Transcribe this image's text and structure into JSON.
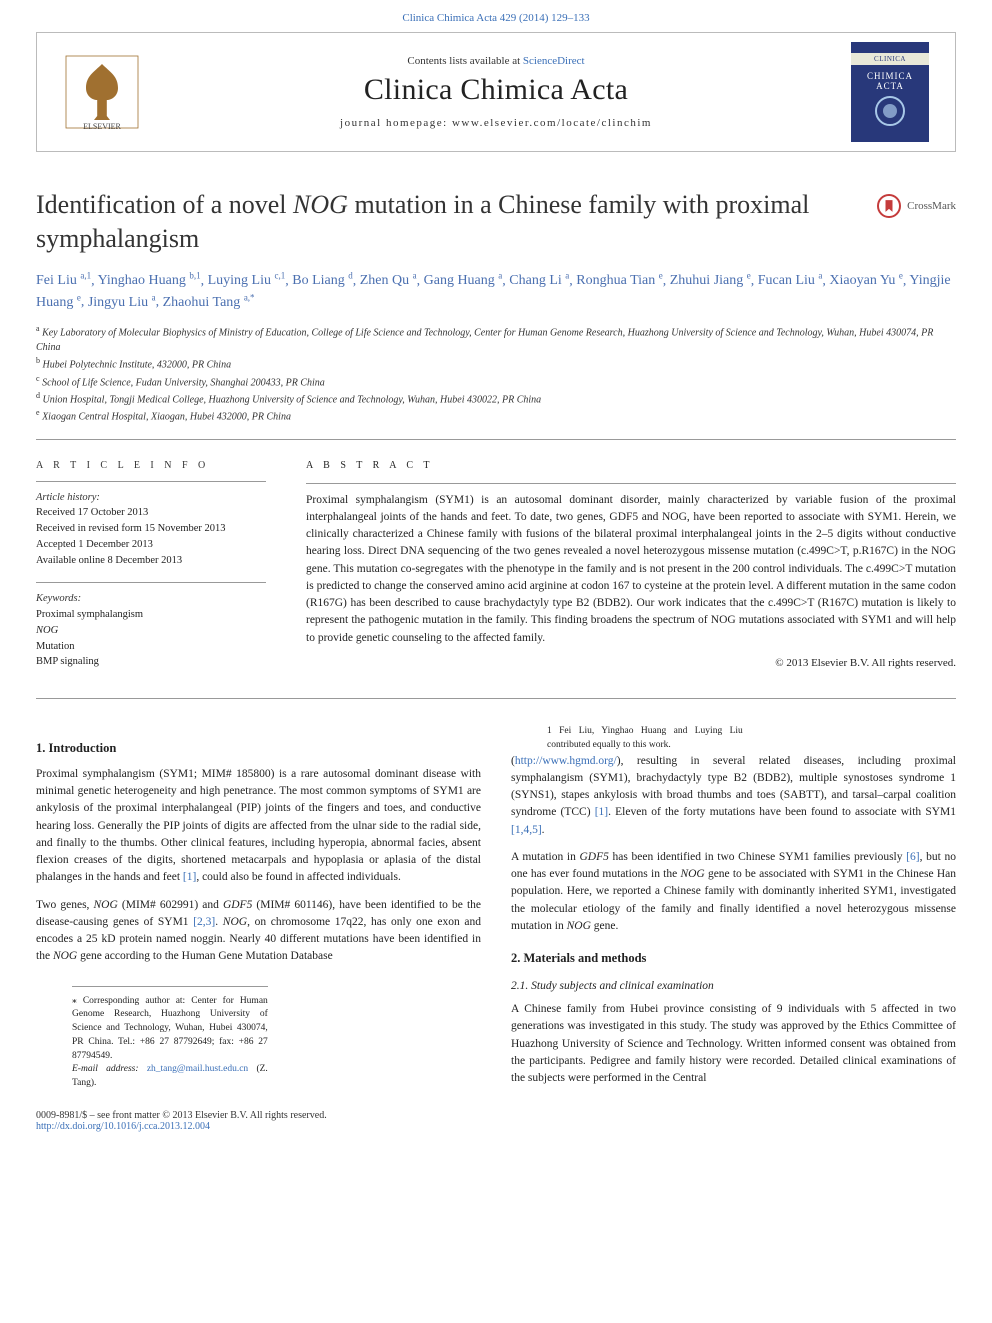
{
  "top_link_text": "Clinica Chimica Acta 429 (2014) 129–133",
  "masthead": {
    "contents_prefix": "Contents lists available at ",
    "contents_link": "ScienceDirect",
    "journal_name": "Clinica Chimica Acta",
    "homepage_label": "journal homepage: www.elsevier.com/locate/clinchim",
    "cover_top": "CLINICA",
    "cover_mid": "CHIMICA",
    "cover_bot": "ACTA"
  },
  "article": {
    "title_prefix": "Identification of a novel ",
    "title_gene": "NOG",
    "title_suffix": " mutation in a Chinese family with proximal symphalangism",
    "crossmark_label": "CrossMark"
  },
  "authors_line": "Fei Liu a,1, Yinghao Huang b,1, Luying Liu c,1, Bo Liang d, Zhen Qu a, Gang Huang a, Chang Li a, Ronghua Tian e, Zhuhui Jiang e, Fucan Liu a, Xiaoyan Yu e, Yingjie Huang e, Jingyu Liu a, Zhaohui Tang a,*",
  "affiliations": [
    {
      "sup": "a",
      "text": "Key Laboratory of Molecular Biophysics of Ministry of Education, College of Life Science and Technology, Center for Human Genome Research, Huazhong University of Science and Technology, Wuhan, Hubei 430074, PR China"
    },
    {
      "sup": "b",
      "text": "Hubei Polytechnic Institute, 432000, PR China"
    },
    {
      "sup": "c",
      "text": "School of Life Science, Fudan University, Shanghai 200433, PR China"
    },
    {
      "sup": "d",
      "text": "Union Hospital, Tongji Medical College, Huazhong University of Science and Technology, Wuhan, Hubei 430022, PR China"
    },
    {
      "sup": "e",
      "text": "Xiaogan Central Hospital, Xiaogan, Hubei 432000, PR China"
    }
  ],
  "info": {
    "heading": "A R T I C L E   I N F O",
    "history_label": "Article history:",
    "history": [
      "Received 17 October 2013",
      "Received in revised form 15 November 2013",
      "Accepted 1 December 2013",
      "Available online 8 December 2013"
    ],
    "keywords_label": "Keywords:",
    "keywords": [
      "Proximal symphalangism",
      "NOG",
      "Mutation",
      "BMP signaling"
    ]
  },
  "abstract": {
    "heading": "A B S T R A C T",
    "text": "Proximal symphalangism (SYM1) is an autosomal dominant disorder, mainly characterized by variable fusion of the proximal interphalangeal joints of the hands and feet. To date, two genes, GDF5 and NOG, have been reported to associate with SYM1. Herein, we clinically characterized a Chinese family with fusions of the bilateral proximal interphalangeal joints in the 2–5 digits without conductive hearing loss. Direct DNA sequencing of the two genes revealed a novel heterozygous missense mutation (c.499C>T, p.R167C) in the NOG gene. This mutation co-segregates with the phenotype in the family and is not present in the 200 control individuals. The c.499C>T mutation is predicted to change the conserved amino acid arginine at codon 167 to cysteine at the protein level. A different mutation in the same codon (R167G) has been described to cause brachydactyly type B2 (BDB2). Our work indicates that the c.499C>T (R167C) mutation is likely to represent the pathogenic mutation in the family. This finding broadens the spectrum of NOG mutations associated with SYM1 and will help to provide genetic counseling to the affected family.",
    "copyright": "© 2013 Elsevier B.V. All rights reserved."
  },
  "body": {
    "intro_h": "1. Introduction",
    "intro_p1": "Proximal symphalangism (SYM1; MIM# 185800) is a rare autosomal dominant disease with minimal genetic heterogeneity and high penetrance. The most common symptoms of SYM1 are ankylosis of the proximal interphalangeal (PIP) joints of the fingers and toes, and conductive hearing loss. Generally the PIP joints of digits are affected from the ulnar side to the radial side, and finally to the thumbs. Other clinical features, including hyperopia, abnormal facies, absent flexion creases of the digits, shortened metacarpals and hypoplasia or aplasia of the distal phalanges in the hands and feet [1], could also be found in affected individuals.",
    "intro_p2": "Two genes, NOG (MIM# 602991) and GDF5 (MIM# 601146), have been identified to be the disease-causing genes of SYM1 [2,3]. NOG, on chromosome 17q22, has only one exon and encodes a 25 kD protein named noggin. Nearly 40 different mutations have been identified in the NOG gene according to the Human Gene Mutation Database",
    "intro_p3": "(http://www.hgmd.org/), resulting in several related diseases, including proximal symphalangism (SYM1), brachydactyly type B2 (BDB2), multiple synostoses syndrome 1 (SYNS1), stapes ankylosis with broad thumbs and toes (SABTT), and tarsal–carpal coalition syndrome (TCC) [1]. Eleven of the forty mutations have been found to associate with SYM1 [1,4,5].",
    "intro_p4": "A mutation in GDF5 has been identified in two Chinese SYM1 families previously [6], but no one has ever found mutations in the NOG gene to be associated with SYM1 in the Chinese Han population. Here, we reported a Chinese family with dominantly inherited SYM1, investigated the molecular etiology of the family and finally identified a novel heterozygous missense mutation in NOG gene.",
    "mm_h": "2. Materials and methods",
    "mm_sub1": "2.1. Study subjects and clinical examination",
    "mm_p1": "A Chinese family from Hubei province consisting of 9 individuals with 5 affected in two generations was investigated in this study. The study was approved by the Ethics Committee of Huazhong University of Science and Technology. Written informed consent was obtained from the participants. Pedigree and family history were recorded. Detailed clinical examinations of the subjects were performed in the Central"
  },
  "footnotes": {
    "corr_label": "⁎ Corresponding author at: Center for Human Genome Research, Huazhong University of Science and Technology, Wuhan, Hubei 430074, PR China. Tel.: +86 27 87792649; fax: +86 27 87794549.",
    "email_prefix": "E-mail address: ",
    "email": "zh_tang@mail.hust.edu.cn",
    "email_suffix": " (Z. Tang).",
    "equal": "1  Fei Liu, Yinghao Huang and Luying Liu contributed equally to this work."
  },
  "footer": {
    "line1": "0009-8981/$ – see front matter © 2013 Elsevier B.V. All rights reserved.",
    "doi": "http://dx.doi.org/10.1016/j.cca.2013.12.004"
  },
  "colors": {
    "link": "#3a6fb7",
    "text": "#222222",
    "rule": "#999999",
    "cover_bg": "#28387a"
  }
}
